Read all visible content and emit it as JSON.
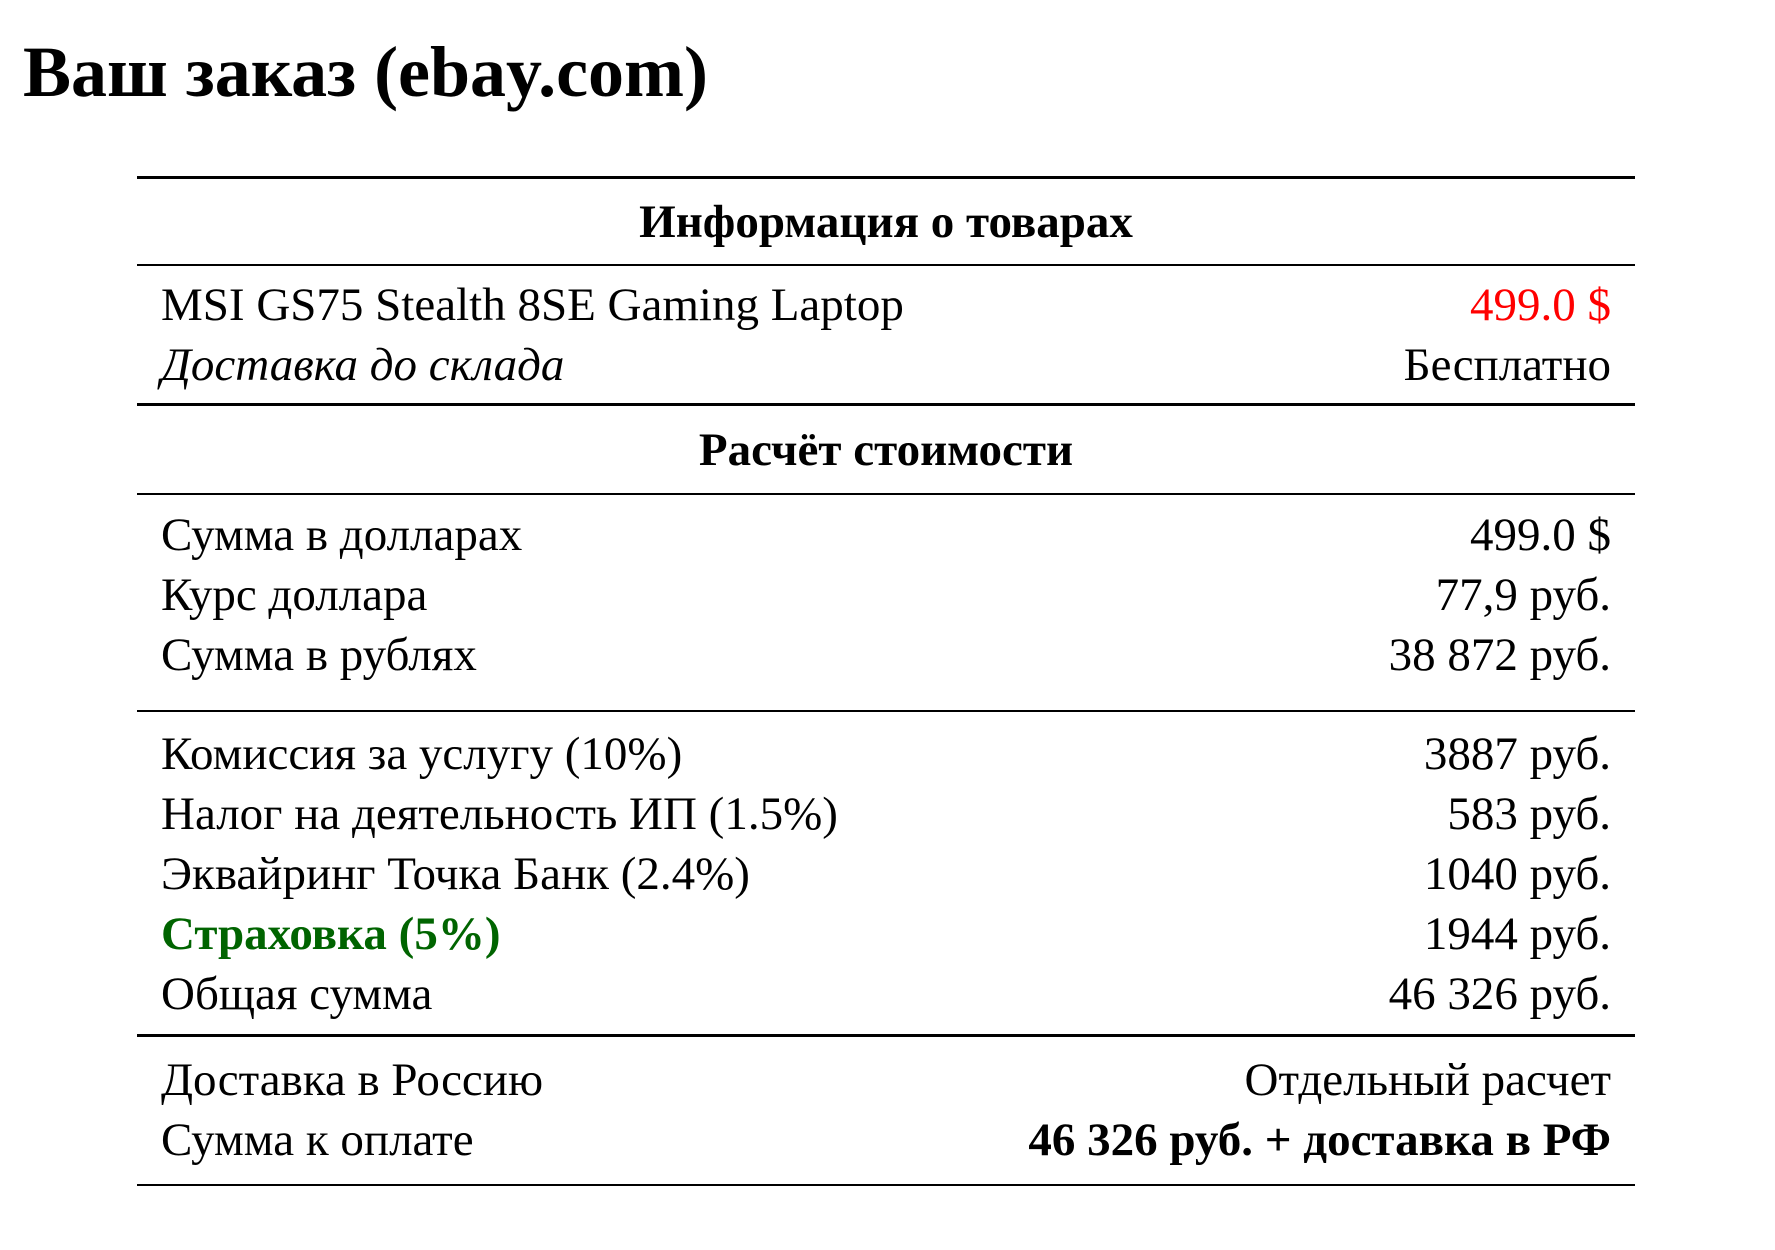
{
  "title": "Ваш заказ (ebay.com)",
  "colors": {
    "price": "#ff0000",
    "insurance": "#006400"
  },
  "products_section": {
    "header": "Информация о товарах",
    "item_name": "MSI GS75 Stealth 8SE Gaming Laptop",
    "item_price": "499.0 $",
    "shipping_label": "Доставка до склада",
    "shipping_value": "Бесплатно"
  },
  "calc_section": {
    "header": "Расчёт стоимости",
    "conversion": [
      {
        "label": "Сумма в долларах",
        "value": "499.0 $"
      },
      {
        "label": "Курс доллара",
        "value": "77,9 руб."
      },
      {
        "label": "Сумма в рублях",
        "value": "38 872 руб."
      }
    ],
    "fees": [
      {
        "label": "Комиссия за услугу (10%)",
        "value": "3887 руб."
      },
      {
        "label": "Налог на деятельность ИП (1.5%)",
        "value": "583 руб."
      },
      {
        "label": "Эквайринг Точка Банк (2.4%)",
        "value": "1040 руб."
      },
      {
        "label": "Страховка (5%)",
        "value": "1944 руб."
      },
      {
        "label": "Общая сумма",
        "value": "46 326 руб."
      }
    ],
    "final": [
      {
        "label": "Доставка в Россию",
        "value": "Отдельный расчет"
      },
      {
        "label": "Сумма к оплате",
        "value": "46 326 руб. + доставка в РФ"
      }
    ]
  }
}
